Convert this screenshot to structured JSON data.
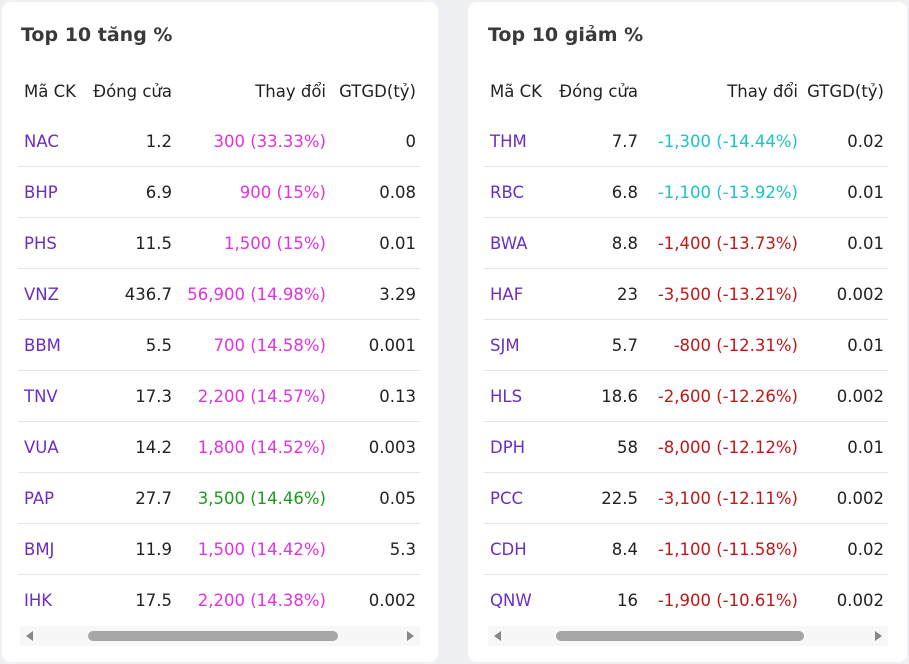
{
  "colors": {
    "symbol": "#6a2fc2",
    "ceiling": "#e233e0",
    "increase": "#1e9b1e",
    "floor": "#1cc4c4",
    "decrease": "#c01818"
  },
  "gainers": {
    "title": "Top 10 tăng %",
    "headers": [
      "Mã CK",
      "Đóng cửa",
      "Thay đổi",
      "GTGD(tỷ)"
    ],
    "rows": [
      {
        "symbol": "NAC",
        "close": "1.2",
        "change": "300 (33.33%)",
        "value": "0",
        "status": "ceiling"
      },
      {
        "symbol": "BHP",
        "close": "6.9",
        "change": "900 (15%)",
        "value": "0.08",
        "status": "ceiling"
      },
      {
        "symbol": "PHS",
        "close": "11.5",
        "change": "1,500 (15%)",
        "value": "0.01",
        "status": "ceiling"
      },
      {
        "symbol": "VNZ",
        "close": "436.7",
        "change": "56,900 (14.98%)",
        "value": "3.29",
        "status": "ceiling"
      },
      {
        "symbol": "BBM",
        "close": "5.5",
        "change": "700 (14.58%)",
        "value": "0.001",
        "status": "ceiling"
      },
      {
        "symbol": "TNV",
        "close": "17.3",
        "change": "2,200 (14.57%)",
        "value": "0.13",
        "status": "ceiling"
      },
      {
        "symbol": "VUA",
        "close": "14.2",
        "change": "1,800 (14.52%)",
        "value": "0.003",
        "status": "ceiling"
      },
      {
        "symbol": "PAP",
        "close": "27.7",
        "change": "3,500 (14.46%)",
        "value": "0.05",
        "status": "increase"
      },
      {
        "symbol": "BMJ",
        "close": "11.9",
        "change": "1,500 (14.42%)",
        "value": "5.3",
        "status": "ceiling"
      },
      {
        "symbol": "IHK",
        "close": "17.5",
        "change": "2,200 (14.38%)",
        "value": "0.002",
        "status": "ceiling"
      }
    ]
  },
  "losers": {
    "title": "Top 10 giảm %",
    "headers": [
      "Mã CK",
      "Đóng cửa",
      "Thay đổi",
      "GTGD(tỷ)"
    ],
    "rows": [
      {
        "symbol": "THM",
        "close": "7.7",
        "change": "-1,300 (-14.44%)",
        "value": "0.02",
        "status": "floor"
      },
      {
        "symbol": "RBC",
        "close": "6.8",
        "change": "-1,100 (-13.92%)",
        "value": "0.01",
        "status": "floor"
      },
      {
        "symbol": "BWA",
        "close": "8.8",
        "change": "-1,400 (-13.73%)",
        "value": "0.01",
        "status": "decrease"
      },
      {
        "symbol": "HAF",
        "close": "23",
        "change": "-3,500 (-13.21%)",
        "value": "0.002",
        "status": "decrease"
      },
      {
        "symbol": "SJM",
        "close": "5.7",
        "change": "-800 (-12.31%)",
        "value": "0.01",
        "status": "decrease"
      },
      {
        "symbol": "HLS",
        "close": "18.6",
        "change": "-2,600 (-12.26%)",
        "value": "0.002",
        "status": "decrease"
      },
      {
        "symbol": "DPH",
        "close": "58",
        "change": "-8,000 (-12.12%)",
        "value": "0.01",
        "status": "decrease"
      },
      {
        "symbol": "PCC",
        "close": "22.5",
        "change": "-3,100 (-12.11%)",
        "value": "0.002",
        "status": "decrease"
      },
      {
        "symbol": "CDH",
        "close": "8.4",
        "change": "-1,100 (-11.58%)",
        "value": "0.02",
        "status": "decrease"
      },
      {
        "symbol": "QNW",
        "close": "16",
        "change": "-1,900 (-10.61%)",
        "value": "0.002",
        "status": "decrease"
      }
    ]
  }
}
